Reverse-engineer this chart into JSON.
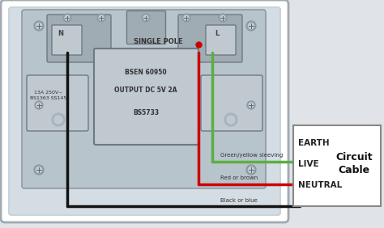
{
  "bg_color": "#e0e4e8",
  "panel_bg": "#d4dce4",
  "panel_border": "#a0aab2",
  "socket_bg": "#b8c4cc",
  "socket_dark": "#a0acb4",
  "module_bg": "#c0c8d0",
  "single_pole_text": "SINGLE POLE",
  "specs_line1": "BSEN 60950",
  "specs_line2": "OUTPUT DC 5V 2A",
  "specs_line3": "BS5733",
  "rating_text": "13A 250V~\nBS1363 SS145",
  "N_label": "N",
  "L_label": "L",
  "wire_earth": "#5ab040",
  "wire_live": "#cc0000",
  "wire_neutral": "#111111",
  "annotation_earth": "Green/yellow sleeving",
  "annotation_live": "Red or brown",
  "annotation_neutral": "Black or blue",
  "legend_earth": "EARTH",
  "legend_live": "LIVE",
  "legend_neutral": "NEUTRAL",
  "legend_cable": "Circuit\nCable",
  "legend_bg": "#ffffff",
  "legend_border": "#888888",
  "white": "#ffffff",
  "screw_outer": "#909aa0",
  "screw_inner": "#c0ccd4",
  "screw_line": "#606870"
}
